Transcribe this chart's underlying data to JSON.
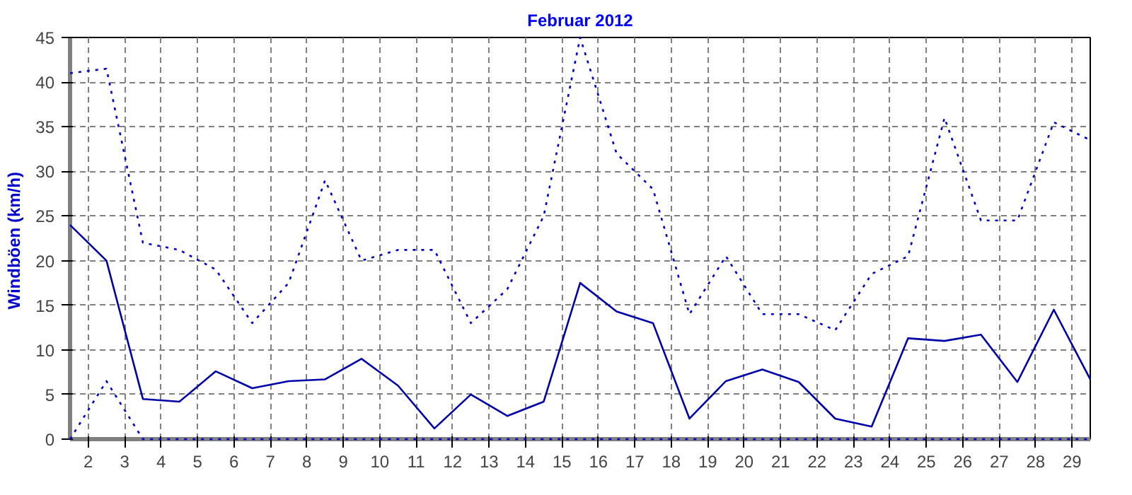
{
  "chart_data": {
    "type": "line",
    "title": "Februar 2012",
    "ylabel": "Windböen  (km/h)",
    "x": [
      1.5,
      2.5,
      3.5,
      4.5,
      5.5,
      6.5,
      7.5,
      8.5,
      9.5,
      10.5,
      11.5,
      12.5,
      13.5,
      14.5,
      15.5,
      16.5,
      17.5,
      18.5,
      19.5,
      20.5,
      21.5,
      22.5,
      23.5,
      24.5,
      25.5,
      26.5,
      27.5,
      28.5,
      29.5
    ],
    "series": [
      {
        "color": "#0000cc",
        "line_style": "dotted",
        "values": [
          41,
          41.5,
          22,
          21.2,
          19,
          13,
          17.5,
          29,
          20,
          21.2,
          21.2,
          13,
          16.8,
          25,
          45,
          32,
          28,
          14,
          20.5,
          14,
          14,
          12.2,
          18.5,
          20.5,
          36,
          24.5,
          24.5,
          35.5,
          33.5
        ]
      },
      {
        "color": "#0000aa",
        "line_style": "solid",
        "values": [
          24,
          20,
          4.5,
          4.2,
          7.6,
          5.7,
          6.5,
          6.7,
          9,
          6,
          1.2,
          5,
          2.6,
          4.2,
          17.5,
          14.3,
          13,
          2.3,
          6.5,
          7.8,
          6.4,
          2.3,
          1.4,
          11.3,
          11,
          11.7,
          6.4,
          14.5,
          6.7
        ]
      },
      {
        "color": "#0000cc",
        "line_style": "dotted",
        "values": [
          0,
          6.5,
          0,
          0,
          0,
          0,
          0,
          0,
          0,
          0,
          0,
          0,
          0,
          0,
          0,
          0,
          0,
          0,
          0,
          0,
          0,
          0,
          0,
          0,
          0,
          0,
          0,
          0,
          0
        ]
      }
    ],
    "xlim": [
      1.5,
      29.5
    ],
    "ylim": [
      0,
      45
    ],
    "xticks": [
      2,
      3,
      4,
      5,
      6,
      7,
      8,
      9,
      10,
      11,
      12,
      13,
      14,
      15,
      16,
      17,
      18,
      19,
      20,
      21,
      22,
      23,
      24,
      25,
      26,
      27,
      28,
      29
    ],
    "yticks": [
      0,
      5,
      10,
      15,
      20,
      25,
      30,
      35,
      40,
      45
    ],
    "grid": true,
    "marker": "none"
  }
}
